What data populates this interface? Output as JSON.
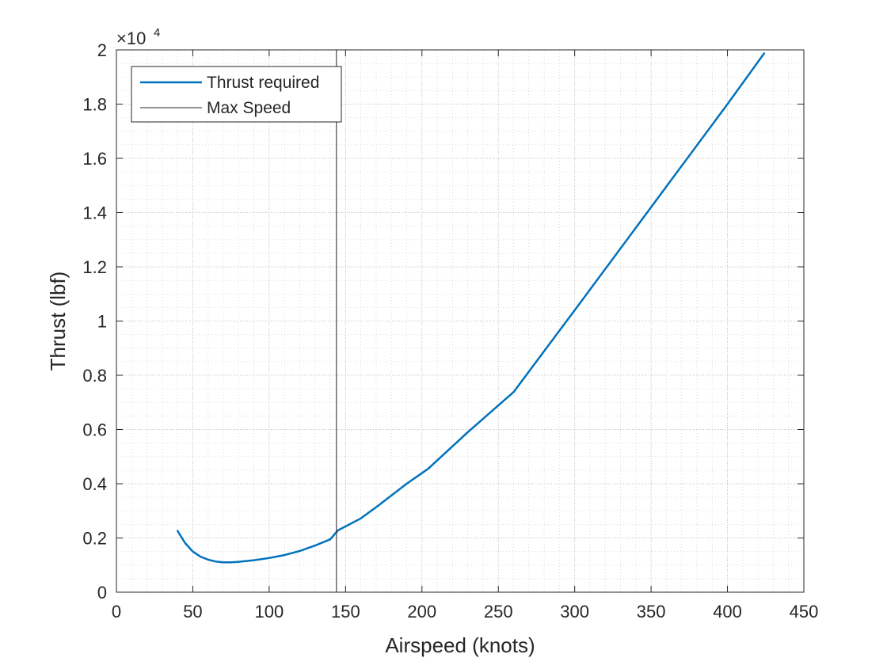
{
  "chart_data": {
    "type": "line",
    "xlabel": "Airspeed (knots)",
    "ylabel": "Thrust (lbf)",
    "exponent_label": "×10",
    "exponent_power": "4",
    "xlim": [
      0,
      450
    ],
    "ylim": [
      0,
      2
    ],
    "y_multiplier": 10000,
    "x_ticks": [
      0,
      50,
      100,
      150,
      200,
      250,
      300,
      350,
      400,
      450
    ],
    "y_ticks": [
      0,
      0.2,
      0.4,
      0.6,
      0.8,
      1,
      1.2,
      1.4,
      1.6,
      1.8,
      2
    ],
    "x_tick_labels": [
      "0",
      "50",
      "100",
      "150",
      "200",
      "250",
      "300",
      "350",
      "400",
      "450"
    ],
    "y_tick_labels": [
      "0",
      "0.2",
      "0.4",
      "0.6",
      "0.8",
      "1",
      "1.2",
      "1.4",
      "1.6",
      "1.8",
      "2"
    ],
    "grid": true,
    "minor_grid": true,
    "legend_position": "top-left",
    "series": [
      {
        "name": "Thrust required",
        "color": "#0072BD",
        "x": [
          40,
          45,
          50,
          55,
          60,
          65,
          70,
          75,
          80,
          90,
          100,
          110,
          120,
          130,
          140,
          145,
          160,
          172,
          190,
          204,
          230,
          260,
          300,
          350,
          400,
          424
        ],
        "y": [
          0.226,
          0.181,
          0.15,
          0.131,
          0.12,
          0.113,
          0.11,
          0.11,
          0.112,
          0.118,
          0.126,
          0.137,
          0.152,
          0.172,
          0.195,
          0.228,
          0.272,
          0.322,
          0.4,
          0.455,
          0.59,
          0.738,
          1.04,
          1.42,
          1.8,
          1.987
        ]
      },
      {
        "name": "Max Speed",
        "color": "#262626",
        "x": [
          144,
          144
        ],
        "y": [
          0,
          2
        ]
      }
    ]
  }
}
